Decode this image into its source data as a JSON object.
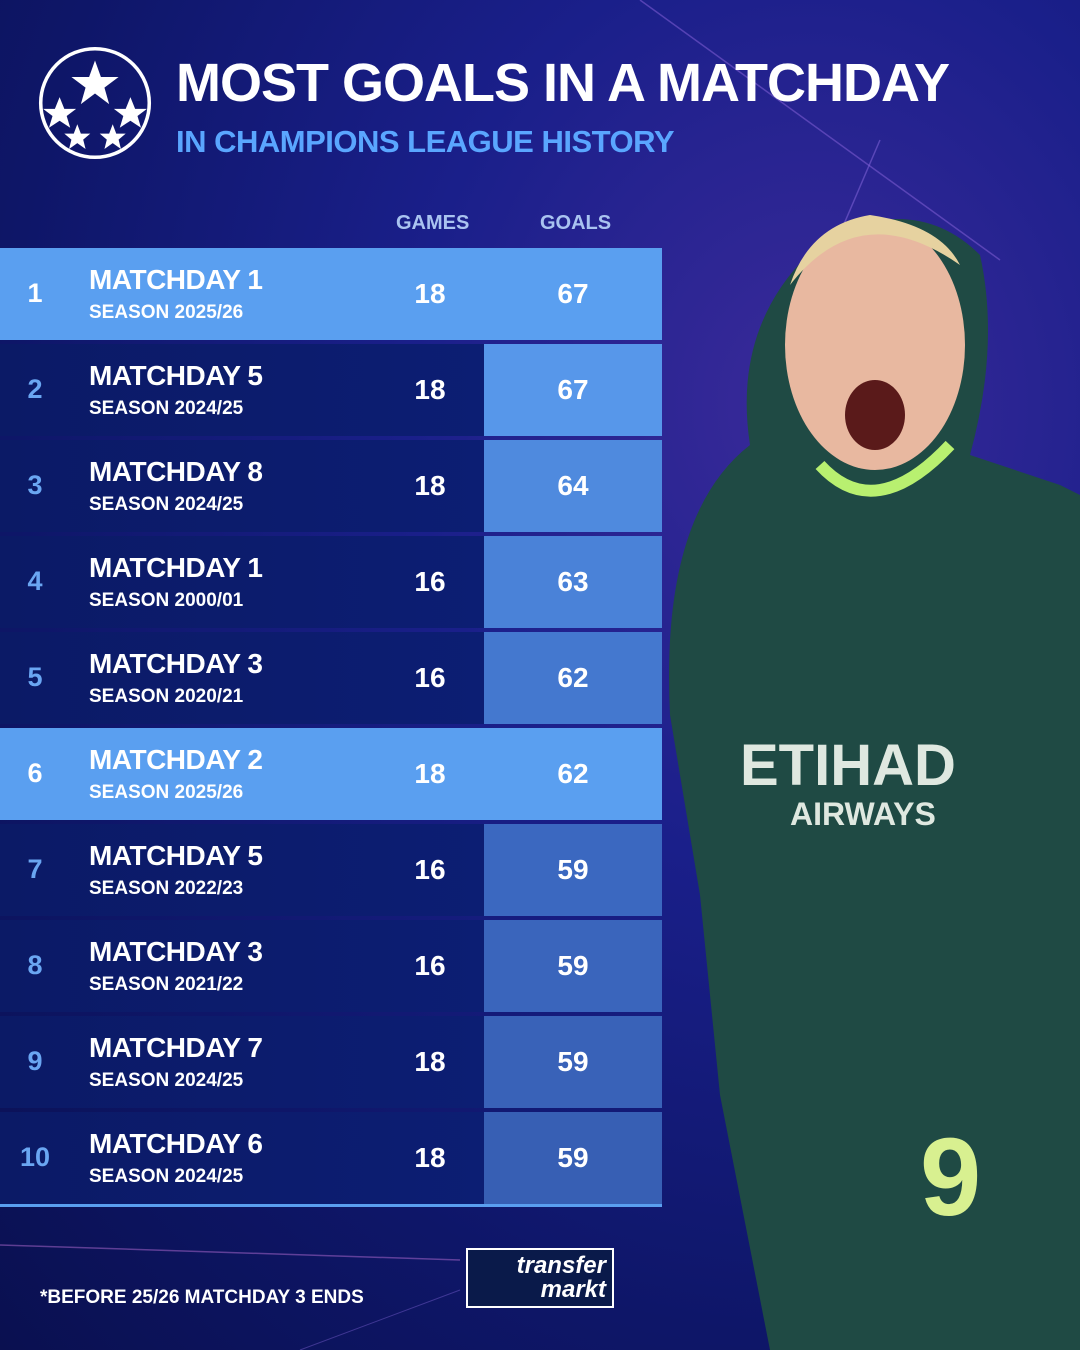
{
  "header": {
    "title": "MOST GOALS IN A MATCHDAY",
    "subtitle": "IN CHAMPIONS LEAGUE HISTORY",
    "logo": "champions-league-starball"
  },
  "columns": {
    "games": "GAMES",
    "goals": "GOALS"
  },
  "rows": [
    {
      "rank": "1",
      "matchday": "MATCHDAY 1",
      "season": "SEASON 2025/26",
      "games": "18",
      "goals": "67",
      "highlight": true
    },
    {
      "rank": "2",
      "matchday": "MATCHDAY 5",
      "season": "SEASON 2024/25",
      "games": "18",
      "goals": "67",
      "highlight": false
    },
    {
      "rank": "3",
      "matchday": "MATCHDAY 8",
      "season": "SEASON 2024/25",
      "games": "18",
      "goals": "64",
      "highlight": false
    },
    {
      "rank": "4",
      "matchday": "MATCHDAY 1",
      "season": "SEASON 2000/01",
      "games": "16",
      "goals": "63",
      "highlight": false
    },
    {
      "rank": "5",
      "matchday": "MATCHDAY 3",
      "season": "SEASON 2020/21",
      "games": "16",
      "goals": "62",
      "highlight": false
    },
    {
      "rank": "6",
      "matchday": "MATCHDAY 2",
      "season": "SEASON 2025/26",
      "games": "18",
      "goals": "62",
      "highlight": true
    },
    {
      "rank": "7",
      "matchday": "MATCHDAY 5",
      "season": "SEASON 2022/23",
      "games": "16",
      "goals": "59",
      "highlight": false
    },
    {
      "rank": "8",
      "matchday": "MATCHDAY 3",
      "season": "SEASON 2021/22",
      "games": "16",
      "goals": "59",
      "highlight": false
    },
    {
      "rank": "9",
      "matchday": "MATCHDAY 7",
      "season": "SEASON 2024/25",
      "games": "18",
      "goals": "59",
      "highlight": false
    },
    {
      "rank": "10",
      "matchday": "MATCHDAY 6",
      "season": "SEASON 2024/25",
      "games": "18",
      "goals": "59",
      "highlight": false
    }
  ],
  "footer": {
    "note": "*BEFORE 25/26 MATCHDAY 3 ENDS",
    "brand_line1": "transfer",
    "brand_line2": "markt"
  },
  "colors": {
    "highlight": "#5a9ff0",
    "row": "#0c1c70",
    "accent": "#5aa6ff"
  }
}
